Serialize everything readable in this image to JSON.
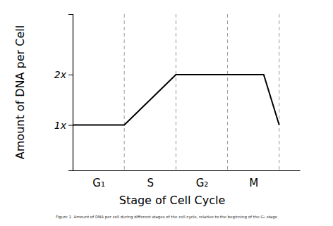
{
  "chart_data": {
    "type": "line",
    "caption": "Figure 1. Amount of DNA per cell during different stages of the cell cycle, relative to the beginning of the G₁ stage",
    "x_label": "Stage of Cell Cycle",
    "y_label": "Amount of DNA per Cell",
    "x": [
      0,
      1,
      2,
      3,
      3.7,
      4
    ],
    "values": [
      1,
      1,
      2,
      2,
      2,
      1
    ],
    "color": "#000000",
    "xlim": [
      0,
      4.4
    ],
    "xticks": [
      {
        "value": 0.5,
        "label": "G₁"
      },
      {
        "value": 1.5,
        "label": "S"
      },
      {
        "value": 2.5,
        "label": "G₂"
      },
      {
        "value": 3.5,
        "label": "M"
      }
    ],
    "ylim": [
      0.1,
      3.2
    ],
    "yticks": [
      {
        "value": 1,
        "label": "1x"
      },
      {
        "value": 2,
        "label": "2x"
      }
    ]
  }
}
